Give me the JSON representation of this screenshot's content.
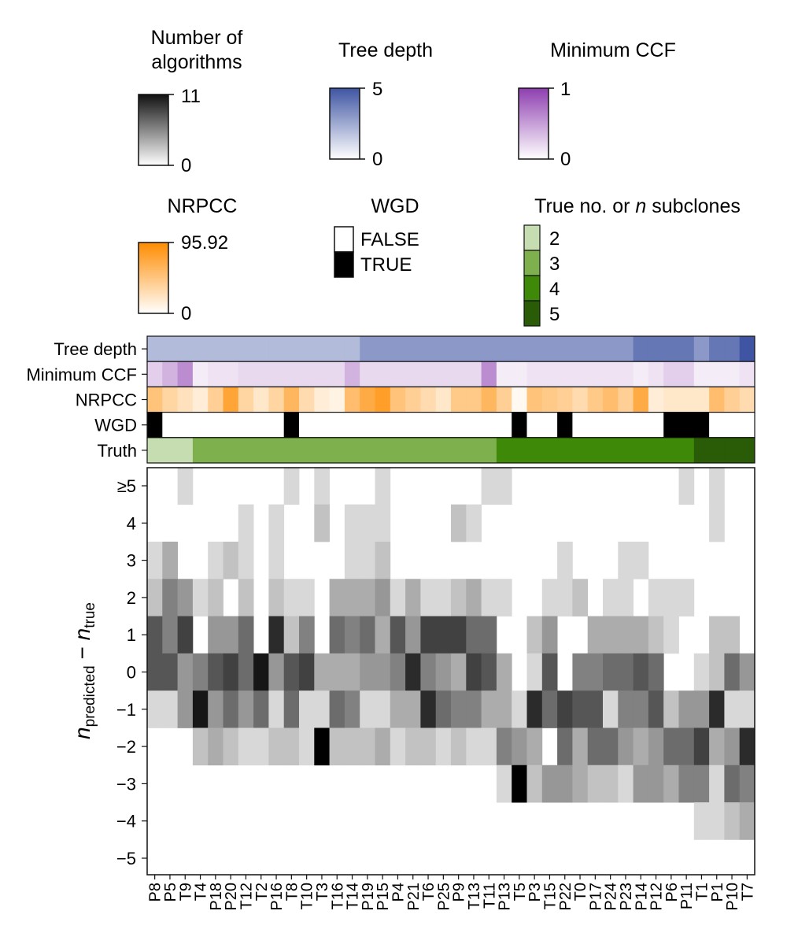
{
  "legends": {
    "num_algorithms": {
      "title_line1": "Number of",
      "title_line2": "algorithms",
      "max_label": "11",
      "min_label": "0",
      "color": "#111111"
    },
    "tree_depth": {
      "title": "Tree depth",
      "max_label": "5",
      "min_label": "0",
      "color": "#3f55a3"
    },
    "min_ccf": {
      "title": "Minimum CCF",
      "max_label": "1",
      "min_label": "0",
      "color": "#8e3fb0"
    },
    "nrpcc": {
      "title": "NRPCC",
      "max_label": "95.92",
      "min_label": "0",
      "color": "#ff8c00"
    },
    "wgd": {
      "title": "WGD",
      "false_label": "FALSE",
      "true_label": "TRUE"
    },
    "subclones": {
      "title_part1": "True no. or ",
      "title_italic": "n",
      "title_part2": " subclones",
      "labels": [
        "2",
        "3",
        "4",
        "5"
      ],
      "colors": [
        "#c5ddb0",
        "#7fb04e",
        "#3e8a08",
        "#2a5b06"
      ]
    }
  },
  "track_labels": [
    "Tree depth",
    "Minimum CCF",
    "NRPCC",
    "WGD",
    "Truth"
  ],
  "ylabel": {
    "main": "n",
    "sub1": "predicted",
    "mid": " − ",
    "main2": "n",
    "sub2": "true"
  },
  "chart_data": {
    "type": "heatmap",
    "samples": [
      "P8",
      "P5",
      "T9",
      "T4",
      "P18",
      "P20",
      "T12",
      "T2",
      "P16",
      "T8",
      "T10",
      "T3",
      "T16",
      "T14",
      "P19",
      "P15",
      "P4",
      "P21",
      "T6",
      "P25",
      "P9",
      "T13",
      "T11",
      "P13",
      "T5",
      "P3",
      "T15",
      "P22",
      "T0",
      "P17",
      "P24",
      "P23",
      "P14",
      "P12",
      "P6",
      "P11",
      "T1",
      "P1",
      "P10",
      "T7"
    ],
    "y_categories": [
      "≥5",
      "4",
      "3",
      "2",
      "1",
      "0",
      "−1",
      "−2",
      "−3",
      "−4",
      "−5"
    ],
    "value_range": [
      0,
      11
    ],
    "annotation_tracks": {
      "tree_depth": [
        2,
        2,
        2,
        2,
        2,
        2,
        2,
        2,
        2,
        2,
        2,
        2,
        2,
        2,
        3,
        3,
        3,
        3,
        3,
        3,
        3,
        3,
        3,
        3,
        3,
        3,
        3,
        3,
        3,
        3,
        3,
        3,
        4,
        4,
        4,
        4,
        3,
        4,
        4,
        5
      ],
      "min_ccf": [
        0.25,
        0.4,
        0.6,
        0.1,
        0.15,
        0.15,
        0.2,
        0.2,
        0.2,
        0.2,
        0.2,
        0.2,
        0.2,
        0.4,
        0.2,
        0.2,
        0.2,
        0.2,
        0.2,
        0.2,
        0.2,
        0.2,
        0.6,
        0.1,
        0.1,
        0.15,
        0.15,
        0.15,
        0.15,
        0.15,
        0.15,
        0.15,
        0.1,
        0.15,
        0.25,
        0.25,
        0.1,
        0.1,
        0.1,
        0.15
      ],
      "nrpcc": [
        50,
        35,
        25,
        15,
        40,
        75,
        35,
        20,
        35,
        60,
        30,
        15,
        10,
        55,
        70,
        80,
        50,
        40,
        30,
        20,
        45,
        45,
        60,
        40,
        5,
        50,
        45,
        40,
        30,
        45,
        55,
        40,
        70,
        15,
        20,
        20,
        20,
        55,
        40,
        30
      ],
      "wgd": [
        true,
        false,
        false,
        false,
        false,
        false,
        false,
        false,
        false,
        true,
        false,
        false,
        false,
        false,
        false,
        false,
        false,
        false,
        false,
        false,
        false,
        false,
        false,
        false,
        true,
        false,
        false,
        true,
        false,
        false,
        false,
        false,
        false,
        false,
        true,
        true,
        true,
        false,
        false,
        false
      ],
      "truth": [
        2,
        2,
        2,
        3,
        3,
        3,
        3,
        3,
        3,
        3,
        3,
        3,
        3,
        3,
        3,
        3,
        3,
        3,
        3,
        3,
        3,
        3,
        3,
        4,
        4,
        4,
        4,
        4,
        4,
        4,
        4,
        4,
        4,
        4,
        4,
        4,
        5,
        5,
        5,
        5
      ]
    },
    "matrix": [
      [
        0,
        0,
        1,
        0,
        0,
        0,
        0,
        0,
        0,
        1,
        0,
        1,
        0,
        0,
        0,
        1,
        0,
        0,
        0,
        0,
        0,
        0,
        1,
        1,
        0,
        0,
        0,
        0,
        0,
        0,
        0,
        0,
        0,
        0,
        0,
        1,
        0,
        1,
        0,
        0
      ],
      [
        0,
        0,
        0,
        0,
        0,
        0,
        1,
        0,
        1,
        0,
        0,
        2,
        0,
        1,
        1,
        1,
        0,
        0,
        0,
        0,
        2,
        1,
        0,
        0,
        0,
        0,
        0,
        0,
        0,
        0,
        0,
        0,
        0,
        0,
        0,
        0,
        0,
        1,
        0,
        0
      ],
      [
        1,
        3,
        0,
        0,
        1,
        2,
        1,
        0,
        1,
        0,
        0,
        0,
        0,
        1,
        1,
        2,
        0,
        0,
        0,
        0,
        0,
        0,
        0,
        0,
        0,
        0,
        0,
        1,
        0,
        0,
        0,
        1,
        1,
        0,
        0,
        0,
        0,
        0,
        0,
        0
      ],
      [
        2,
        5,
        4,
        1,
        2,
        0,
        2,
        0,
        2,
        1,
        1,
        0,
        3,
        3,
        3,
        4,
        1,
        3,
        1,
        1,
        2,
        3,
        1,
        1,
        0,
        0,
        1,
        1,
        2,
        0,
        1,
        1,
        0,
        1,
        1,
        1,
        0,
        0,
        0,
        0
      ],
      [
        7,
        5,
        8,
        0,
        4,
        4,
        6,
        0,
        9,
        2,
        5,
        0,
        6,
        5,
        6,
        3,
        7,
        4,
        8,
        8,
        8,
        6,
        6,
        0,
        0,
        2,
        4,
        0,
        0,
        3,
        3,
        3,
        3,
        2,
        1,
        0,
        0,
        2,
        2,
        0
      ],
      [
        7,
        7,
        4,
        5,
        7,
        8,
        6,
        10,
        4,
        7,
        8,
        3,
        3,
        3,
        4,
        4,
        5,
        9,
        5,
        4,
        3,
        8,
        7,
        3,
        0,
        1,
        7,
        0,
        5,
        5,
        6,
        6,
        7,
        6,
        0,
        0,
        1,
        2,
        6,
        4
      ],
      [
        1,
        1,
        4,
        10,
        4,
        6,
        4,
        6,
        1,
        6,
        1,
        1,
        6,
        5,
        1,
        1,
        3,
        3,
        9,
        6,
        5,
        5,
        3,
        3,
        1,
        9,
        6,
        8,
        7,
        7,
        1,
        5,
        5,
        7,
        2,
        4,
        4,
        9,
        1,
        1
      ],
      [
        0,
        0,
        0,
        2,
        3,
        2,
        1,
        1,
        2,
        2,
        1,
        11,
        2,
        2,
        2,
        3,
        1,
        2,
        2,
        1,
        2,
        1,
        1,
        5,
        4,
        3,
        0,
        6,
        3,
        6,
        6,
        4,
        3,
        4,
        6,
        6,
        8,
        3,
        4,
        9
      ],
      [
        0,
        0,
        0,
        0,
        0,
        0,
        0,
        0,
        0,
        0,
        0,
        0,
        0,
        0,
        0,
        0,
        0,
        0,
        0,
        0,
        0,
        0,
        0,
        1,
        11,
        2,
        4,
        4,
        3,
        2,
        2,
        1,
        4,
        4,
        3,
        5,
        5,
        1,
        6,
        5
      ],
      [
        0,
        0,
        0,
        0,
        0,
        0,
        0,
        0,
        0,
        0,
        0,
        0,
        0,
        0,
        0,
        0,
        0,
        0,
        0,
        0,
        0,
        0,
        0,
        0,
        0,
        0,
        0,
        0,
        0,
        0,
        0,
        0,
        0,
        0,
        0,
        0,
        1,
        1,
        2,
        3
      ],
      [
        0,
        0,
        0,
        0,
        0,
        0,
        0,
        0,
        0,
        0,
        0,
        0,
        0,
        0,
        0,
        0,
        0,
        0,
        0,
        0,
        0,
        0,
        0,
        0,
        0,
        0,
        0,
        0,
        0,
        0,
        0,
        0,
        0,
        0,
        0,
        0,
        0,
        0,
        0,
        0
      ]
    ]
  }
}
